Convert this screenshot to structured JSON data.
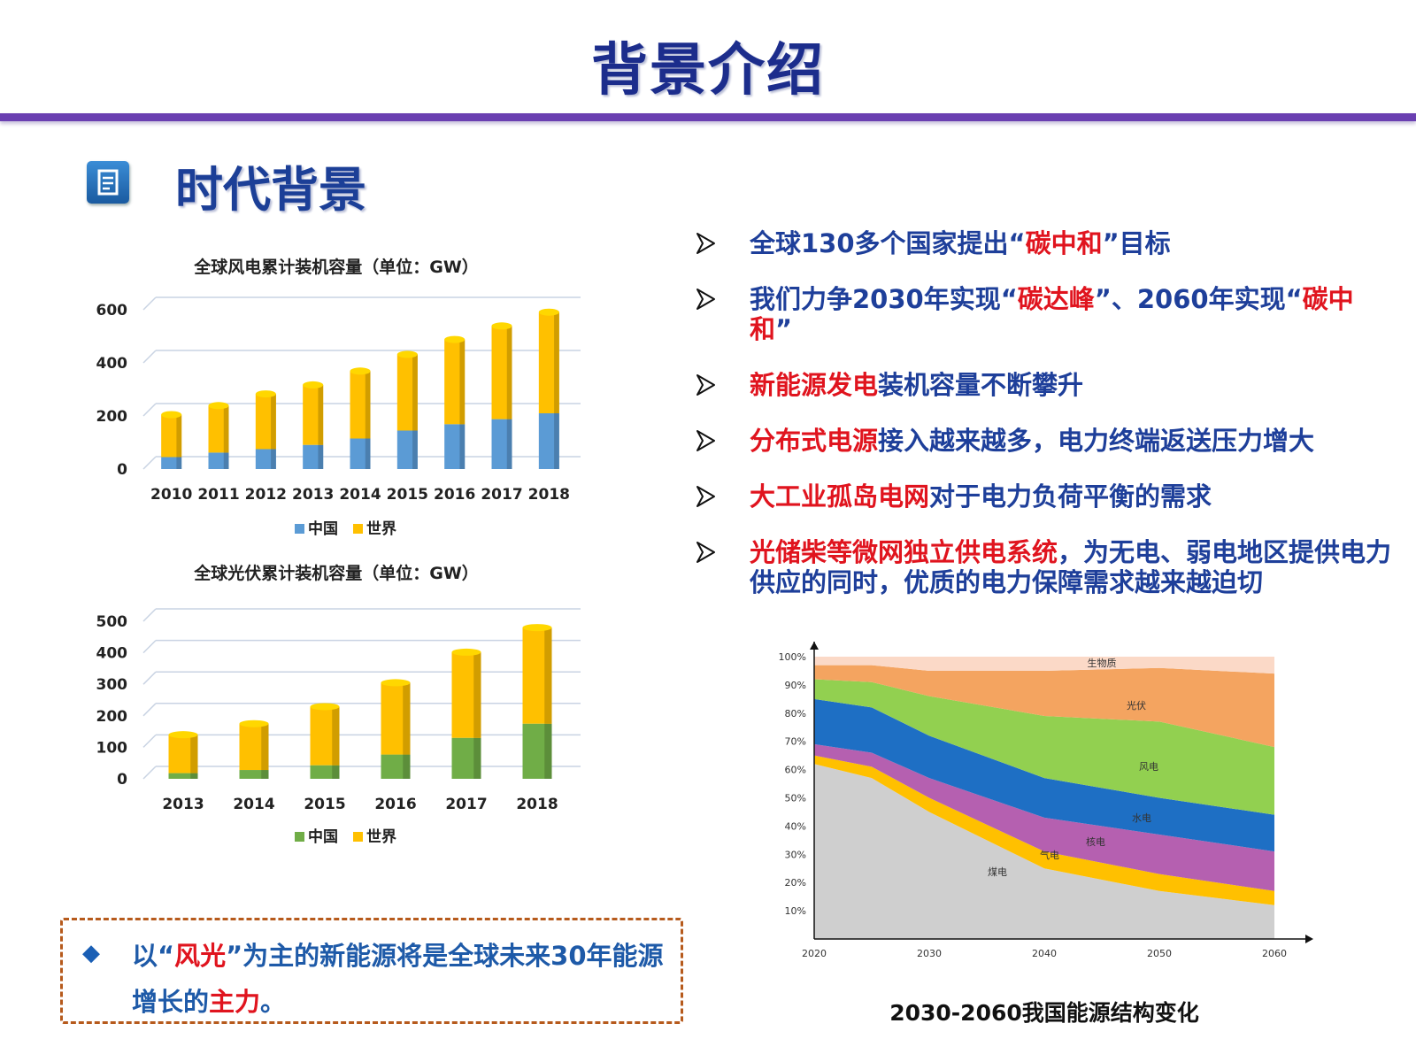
{
  "header": {
    "title": "背景介绍"
  },
  "section": {
    "icon": "document-icon",
    "title": "时代背景"
  },
  "bullets": [
    {
      "parts": [
        {
          "t": "全球130多个国家提出“",
          "red": false
        },
        {
          "t": "碳中和",
          "red": true
        },
        {
          "t": "”目标",
          "red": false
        }
      ]
    },
    {
      "parts": [
        {
          "t": "我们力争2030年实现“",
          "red": false
        },
        {
          "t": "碳达峰",
          "red": true
        },
        {
          "t": "”、2060年实现“",
          "red": false
        },
        {
          "t": "碳中和",
          "red": true
        },
        {
          "t": "”",
          "red": false
        }
      ]
    },
    {
      "parts": [
        {
          "t": "新能源发电",
          "red": true
        },
        {
          "t": "装机容量不断攀升",
          "red": false
        }
      ]
    },
    {
      "parts": [
        {
          "t": "分布式电源",
          "red": true
        },
        {
          "t": "接入越来越多，电力终端返送压力增大",
          "red": false
        }
      ]
    },
    {
      "parts": [
        {
          "t": "大工业孤岛电网",
          "red": true
        },
        {
          "t": "对于电力负荷平衡的需求",
          "red": false
        }
      ]
    },
    {
      "parts": [
        {
          "t": "光储柴等微网独立供电系统",
          "red": true
        },
        {
          "t": "，为无电、弱电地区提供电力供应的同时，优质的电力保障需求越来越迫切",
          "red": false
        }
      ]
    }
  ],
  "callout": {
    "bullet_icon": "diamond-icon",
    "parts": [
      {
        "t": "以“",
        "red": false
      },
      {
        "t": "风光",
        "red": true
      },
      {
        "t": "”为主的新能源将是全球未来30年能源增长的",
        "red": false
      },
      {
        "t": "主力",
        "red": true
      },
      {
        "t": "。",
        "red": false
      }
    ]
  },
  "area_caption": "2030-2060我国能源结构变化",
  "colors": {
    "china_wind": "#5b9bd5",
    "world": "#ffc000",
    "china_pv": "#70ad47",
    "title_blue": "#1c2d8c",
    "accent_red": "#e0141e",
    "rule_purple": "#6a3fb1"
  },
  "chart_data": [
    {
      "type": "bar",
      "stacked": true,
      "title": "全球风电累计装机容量（单位：GW）",
      "categories": [
        "2010",
        "2011",
        "2012",
        "2013",
        "2014",
        "2015",
        "2016",
        "2017",
        "2018"
      ],
      "series": [
        {
          "name": "中国",
          "values": [
            45,
            62,
            75,
            91,
            115,
            145,
            169,
            188,
            210
          ]
        },
        {
          "name": "世界",
          "values": [
            160,
            177,
            208,
            226,
            254,
            287,
            319,
            351,
            381
          ]
        }
      ],
      "ylim": [
        0,
        600
      ],
      "yticks": [
        0,
        200,
        400,
        600
      ],
      "grid": true,
      "legend": "bottom"
    },
    {
      "type": "bar",
      "stacked": true,
      "title": "全球光伏累计装机容量（单位：GW）",
      "categories": [
        "2013",
        "2014",
        "2015",
        "2016",
        "2017",
        "2018"
      ],
      "series": [
        {
          "name": "中国",
          "values": [
            18,
            28,
            43,
            77,
            130,
            175
          ]
        },
        {
          "name": "世界",
          "values": [
            122,
            147,
            186,
            228,
            272,
            305
          ]
        }
      ],
      "ylim": [
        0,
        500
      ],
      "yticks": [
        0,
        100,
        200,
        300,
        400,
        500
      ],
      "grid": true,
      "legend": "bottom"
    },
    {
      "type": "area",
      "title": "",
      "x": [
        2020,
        2025,
        2030,
        2040,
        2050,
        2060
      ],
      "xticks": [
        "2020",
        "2030",
        "2040",
        "2050",
        "2060"
      ],
      "yticks": [
        "10%",
        "20%",
        "30%",
        "40%",
        "50%",
        "60%",
        "70%",
        "80%",
        "90%",
        "100%"
      ],
      "ylim": [
        0,
        100
      ],
      "series": [
        {
          "name": "煤电",
          "color": "#cfcfcf",
          "values": [
            62,
            57,
            45,
            25,
            17,
            12
          ]
        },
        {
          "name": "气电",
          "color": "#ffc000",
          "values": [
            3,
            4,
            5,
            6,
            6,
            5
          ]
        },
        {
          "name": "核电",
          "color": "#b560b0",
          "values": [
            4,
            5,
            7,
            12,
            14,
            14
          ]
        },
        {
          "name": "水电",
          "color": "#1e6fc4",
          "values": [
            16,
            16,
            15,
            14,
            13,
            13
          ]
        },
        {
          "name": "风电",
          "color": "#92d050",
          "values": [
            7,
            9,
            14,
            22,
            27,
            24
          ]
        },
        {
          "name": "光伏",
          "color": "#f4a460",
          "values": [
            5,
            6,
            9,
            16,
            19,
            26
          ]
        },
        {
          "name": "生物质",
          "color": "#fbd9c7",
          "values": [
            3,
            3,
            5,
            5,
            4,
            6
          ]
        }
      ],
      "legend": "labels-on-areas"
    }
  ]
}
